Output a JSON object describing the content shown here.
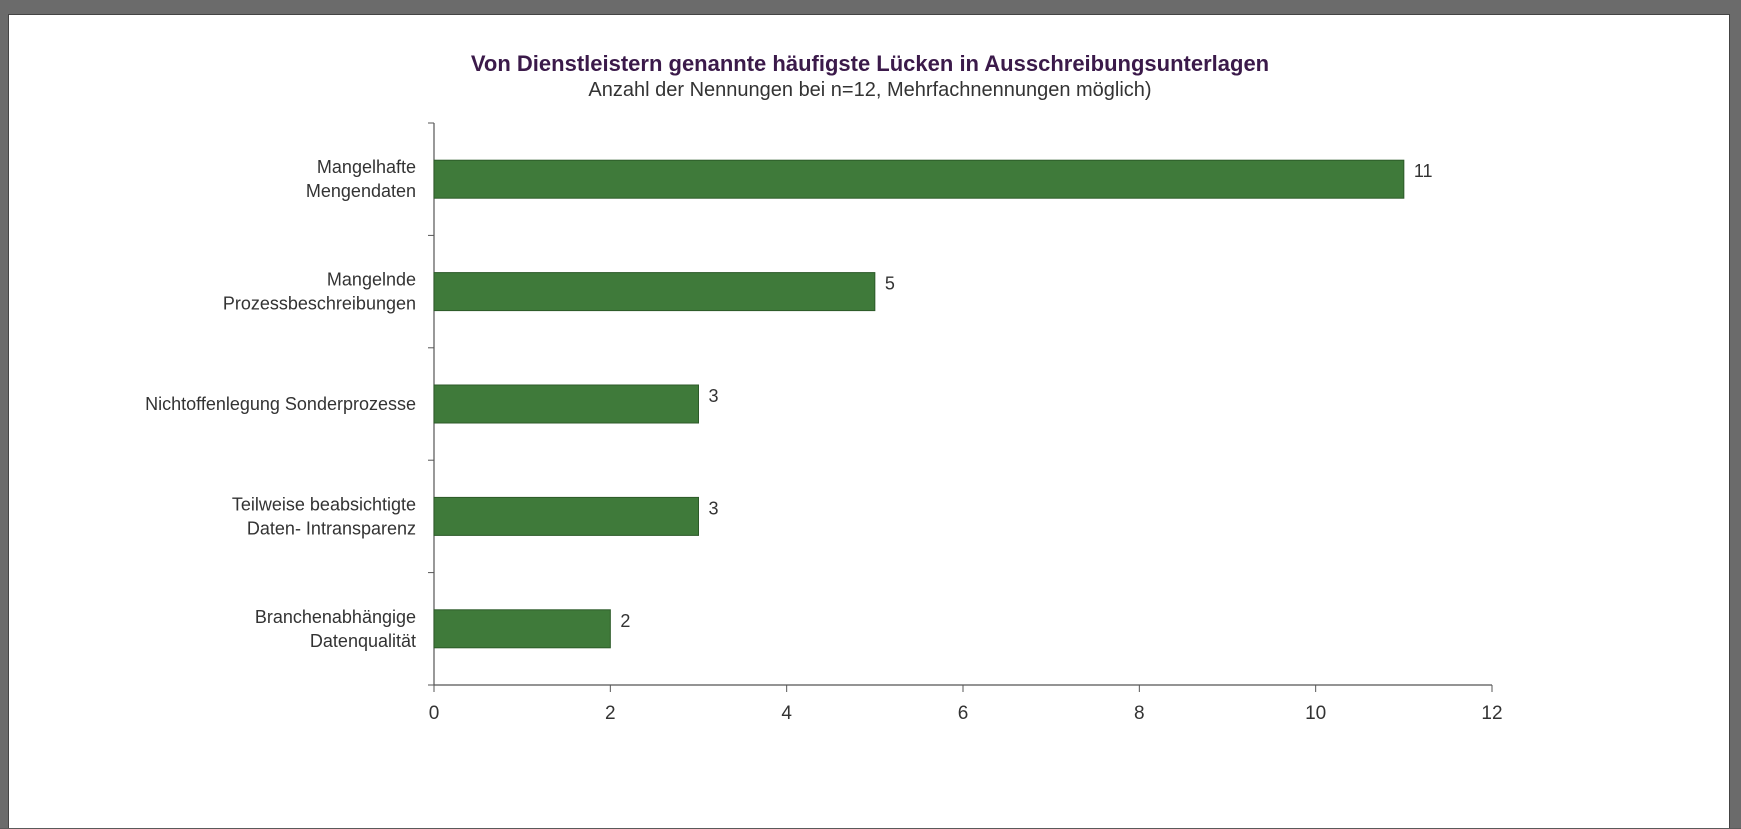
{
  "chart_data": {
    "type": "bar",
    "orientation": "horizontal",
    "title": "Von Dienstleistern genannte häufigste Lücken in Ausschreibungsunterlagen",
    "subtitle": "Anzahl der Nennungen bei n=12, Mehrfachnennungen möglich)",
    "categories": [
      [
        "Mangelhafte",
        "Mengendaten"
      ],
      [
        "Mangelnde",
        "Prozessbeschreibungen"
      ],
      [
        "Nichtoffenlegung Sonderprozesse"
      ],
      [
        "Teilweise beabsichtigte",
        "Daten- Intransparenz"
      ],
      [
        "Branchenabhängige",
        "Datenqualität"
      ]
    ],
    "values": [
      11,
      5,
      3,
      3,
      2
    ],
    "data_labels": [
      "11",
      "5",
      "3",
      "3",
      "2"
    ],
    "xlim": [
      0,
      12
    ],
    "xticks": [
      0,
      2,
      4,
      6,
      8,
      10,
      12
    ],
    "xtick_labels": [
      "0",
      "2",
      "4",
      "6",
      "8",
      "10",
      "12"
    ],
    "xlabel": "",
    "ylabel": "",
    "grid": false,
    "legend": "none",
    "bar_color": "#3f7a3a",
    "bar_edge_color": "#2c5a28",
    "axis_color": "#555555"
  }
}
